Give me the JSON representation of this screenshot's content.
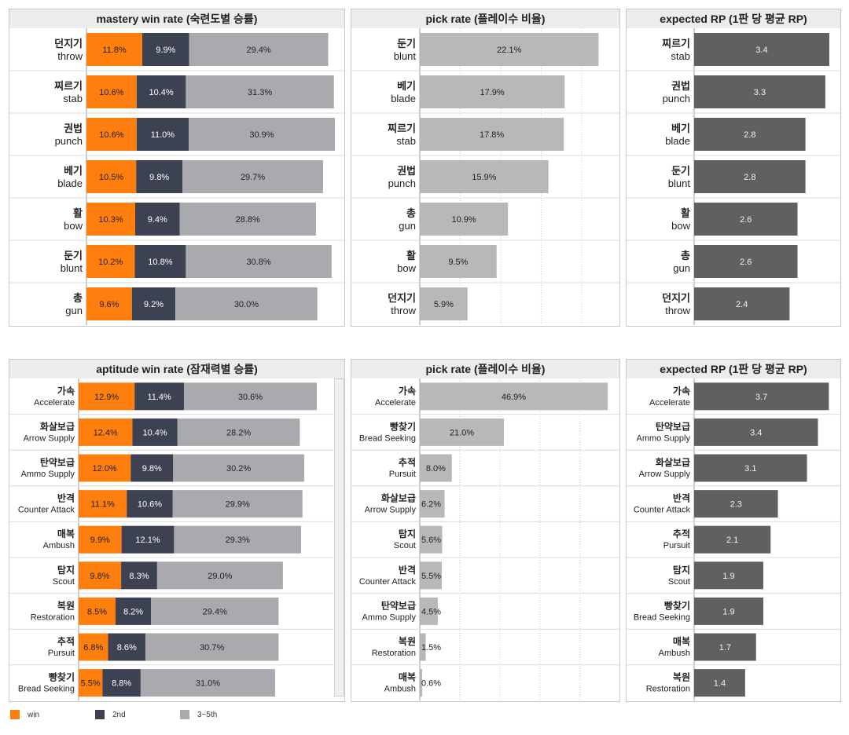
{
  "colors": {
    "win": "#ff7f0e",
    "second": "#3d4252",
    "third_fifth": "#a8aaad",
    "pick": "#b8b8b8",
    "rp": "#606060"
  },
  "legend": {
    "win": "win",
    "second": "2nd",
    "third_fifth": "3~5th"
  },
  "chart_data": [
    {
      "id": "mastery-win",
      "type": "bar",
      "stacked": true,
      "title": "mastery win rate (숙련도별 승률)",
      "categories": [
        [
          "던지기",
          "throw"
        ],
        [
          "찌르기",
          "stab"
        ],
        [
          "권법",
          "punch"
        ],
        [
          "베기",
          "blade"
        ],
        [
          "활",
          "bow"
        ],
        [
          "둔기",
          "blunt"
        ],
        [
          "총",
          "gun"
        ]
      ],
      "series": [
        {
          "name": "win",
          "values": [
            11.8,
            10.6,
            10.6,
            10.5,
            10.3,
            10.2,
            9.6
          ]
        },
        {
          "name": "2nd",
          "values": [
            9.9,
            10.4,
            11.0,
            9.8,
            9.4,
            10.8,
            9.2
          ]
        },
        {
          "name": "3~5th",
          "values": [
            29.4,
            31.3,
            30.9,
            29.7,
            28.8,
            30.8,
            30.0
          ]
        }
      ],
      "labels": [
        [
          "11.8%",
          "9.9%",
          "29.4%"
        ],
        [
          "10.6%",
          "10.4%",
          "31.3%"
        ],
        [
          "10.6%",
          "11.0%",
          "30.9%"
        ],
        [
          "10.5%",
          "9.8%",
          "29.7%"
        ],
        [
          "10.3%",
          "9.4%",
          "28.8%"
        ],
        [
          "10.2%",
          "10.8%",
          "30.8%"
        ],
        [
          "9.6%",
          "9.2%",
          "30.0%"
        ]
      ],
      "xlim": [
        0,
        54
      ]
    },
    {
      "id": "mastery-pick",
      "type": "bar",
      "title": "pick rate (플레이수 비율)",
      "categories": [
        [
          "둔기",
          "blunt"
        ],
        [
          "베기",
          "blade"
        ],
        [
          "찌르기",
          "stab"
        ],
        [
          "권법",
          "punch"
        ],
        [
          "총",
          "gun"
        ],
        [
          "활",
          "bow"
        ],
        [
          "던지기",
          "throw"
        ]
      ],
      "values": [
        22.1,
        17.9,
        17.8,
        15.9,
        10.9,
        9.5,
        5.9
      ],
      "labels": [
        "22.1%",
        "17.9%",
        "17.8%",
        "15.9%",
        "10.9%",
        "9.5%",
        "5.9%"
      ],
      "xlim": [
        0,
        24
      ],
      "gridlines": [
        5,
        10,
        15,
        20
      ]
    },
    {
      "id": "mastery-rp",
      "type": "bar",
      "title": "expected RP (1판 당 평균 RP)",
      "categories": [
        [
          "찌르기",
          "stab"
        ],
        [
          "권법",
          "punch"
        ],
        [
          "베기",
          "blade"
        ],
        [
          "둔기",
          "blunt"
        ],
        [
          "활",
          "bow"
        ],
        [
          "총",
          "gun"
        ],
        [
          "던지기",
          "throw"
        ]
      ],
      "values": [
        3.4,
        3.3,
        2.8,
        2.8,
        2.6,
        2.6,
        2.4
      ],
      "labels": [
        "3.4",
        "3.3",
        "2.8",
        "2.8",
        "2.6",
        "2.6",
        "2.4"
      ],
      "xlim": [
        0,
        3.5
      ]
    },
    {
      "id": "aptitude-win",
      "type": "bar",
      "stacked": true,
      "title": "aptitude win rate (잠재력별 승률)",
      "categories": [
        [
          "가속",
          "Accelerate"
        ],
        [
          "화살보급",
          "Arrow Supply"
        ],
        [
          "탄약보급",
          "Ammo Supply"
        ],
        [
          "반격",
          "Counter Attack"
        ],
        [
          "매복",
          "Ambush"
        ],
        [
          "탐지",
          "Scout"
        ],
        [
          "복원",
          "Restoration"
        ],
        [
          "추적",
          "Pursuit"
        ],
        [
          "빵찾기",
          "Bread Seeking"
        ]
      ],
      "series": [
        {
          "name": "win",
          "values": [
            12.9,
            12.4,
            12.0,
            11.1,
            9.9,
            9.8,
            8.5,
            6.8,
            5.5
          ]
        },
        {
          "name": "2nd",
          "values": [
            11.4,
            10.4,
            9.8,
            10.6,
            12.1,
            8.3,
            8.2,
            8.6,
            8.8
          ]
        },
        {
          "name": "3~5th",
          "values": [
            30.6,
            28.2,
            30.2,
            29.9,
            29.3,
            29.0,
            29.4,
            30.7,
            31.0
          ]
        }
      ],
      "labels": [
        [
          "12.9%",
          "11.4%",
          "30.6%"
        ],
        [
          "12.4%",
          "10.4%",
          "28.2%"
        ],
        [
          "12.0%",
          "9.8%",
          "30.2%"
        ],
        [
          "11.1%",
          "10.6%",
          "29.9%"
        ],
        [
          "9.9%",
          "12.1%",
          "29.3%"
        ],
        [
          "9.8%",
          "8.3%",
          "29.0%"
        ],
        [
          "8.5%",
          "8.2%",
          "29.4%"
        ],
        [
          "6.8%",
          "8.6%",
          "30.7%"
        ],
        [
          "5.5%",
          "8.8%",
          "31.0%"
        ]
      ],
      "xlim": [
        0,
        56
      ]
    },
    {
      "id": "aptitude-pick",
      "type": "bar",
      "title": "pick rate (플레이수 비율)",
      "categories": [
        [
          "가속",
          "Accelerate"
        ],
        [
          "빵찾기",
          "Bread Seeking"
        ],
        [
          "추적",
          "Pursuit"
        ],
        [
          "화살보급",
          "Arrow Supply"
        ],
        [
          "탐지",
          "Scout"
        ],
        [
          "반격",
          "Counter Attack"
        ],
        [
          "탄약보급",
          "Ammo Supply"
        ],
        [
          "복원",
          "Restoration"
        ],
        [
          "매복",
          "Ambush"
        ]
      ],
      "values": [
        46.9,
        21.0,
        8.0,
        6.2,
        5.6,
        5.5,
        4.5,
        1.5,
        0.6
      ],
      "labels": [
        "46.9%",
        "21.0%",
        "8.0%",
        "6.2%",
        "5.6%",
        "5.5%",
        "4.5%",
        "1.5%",
        "0.6%"
      ],
      "xlim": [
        0,
        47.5
      ],
      "gridlines": [
        10,
        20,
        30,
        40
      ]
    },
    {
      "id": "aptitude-rp",
      "type": "bar",
      "title": "expected RP (1판 당 평균 RP)",
      "categories": [
        [
          "가속",
          "Accelerate"
        ],
        [
          "탄약보급",
          "Ammo Supply"
        ],
        [
          "화살보급",
          "Arrow Supply"
        ],
        [
          "반격",
          "Counter Attack"
        ],
        [
          "추적",
          "Pursuit"
        ],
        [
          "탐지",
          "Scout"
        ],
        [
          "빵찾기",
          "Bread Seeking"
        ],
        [
          "매복",
          "Ambush"
        ],
        [
          "복원",
          "Restoration"
        ]
      ],
      "values": [
        3.7,
        3.4,
        3.1,
        2.3,
        2.1,
        1.9,
        1.9,
        1.7,
        1.4
      ],
      "labels": [
        "3.7",
        "3.4",
        "3.1",
        "2.3",
        "2.1",
        "1.9",
        "1.9",
        "1.7",
        "1.4"
      ],
      "xlim": [
        0,
        3.8
      ]
    }
  ]
}
